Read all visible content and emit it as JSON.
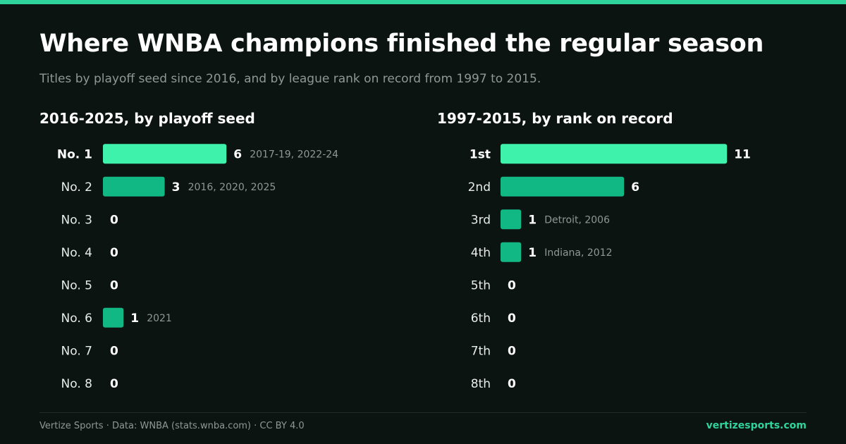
{
  "header": {
    "title": "Where WNBA champions finished the regular season",
    "subtitle": "Titles by playoff seed since 2016, and by league rank on record from 1997 to 2015."
  },
  "colors": {
    "accent": "#2fd49c",
    "bar_highlight": "#3ef2ac",
    "bar": "#12b884",
    "background": "#0c1412",
    "muted_text": "#8f9894"
  },
  "chart_data": [
    {
      "type": "bar",
      "orientation": "horizontal",
      "title": "2016-2025, by playoff seed",
      "categories": [
        "No. 1",
        "No. 2",
        "No. 3",
        "No. 4",
        "No. 5",
        "No. 6",
        "No. 7",
        "No. 8"
      ],
      "values": [
        6,
        3,
        0,
        0,
        0,
        1,
        0,
        0
      ],
      "annotations": [
        "2017-19, 2022-24",
        "2016, 2020, 2025",
        "",
        "",
        "",
        "2021",
        "",
        ""
      ],
      "highlight_index": 0,
      "xlim": [
        0,
        11
      ],
      "grid": false
    },
    {
      "type": "bar",
      "orientation": "horizontal",
      "title": "1997-2015, by rank on record",
      "categories": [
        "1st",
        "2nd",
        "3rd",
        "4th",
        "5th",
        "6th",
        "7th",
        "8th"
      ],
      "values": [
        11,
        6,
        1,
        1,
        0,
        0,
        0,
        0
      ],
      "annotations": [
        "",
        "",
        "Detroit, 2006",
        "Indiana, 2012",
        "",
        "",
        "",
        ""
      ],
      "highlight_index": 0,
      "xlim": [
        0,
        11
      ],
      "grid": false
    }
  ],
  "footer": {
    "credit": "Vertize Sports · Data: WNBA (stats.wnba.com) · CC BY 4.0",
    "site": "vertizesports.com"
  }
}
